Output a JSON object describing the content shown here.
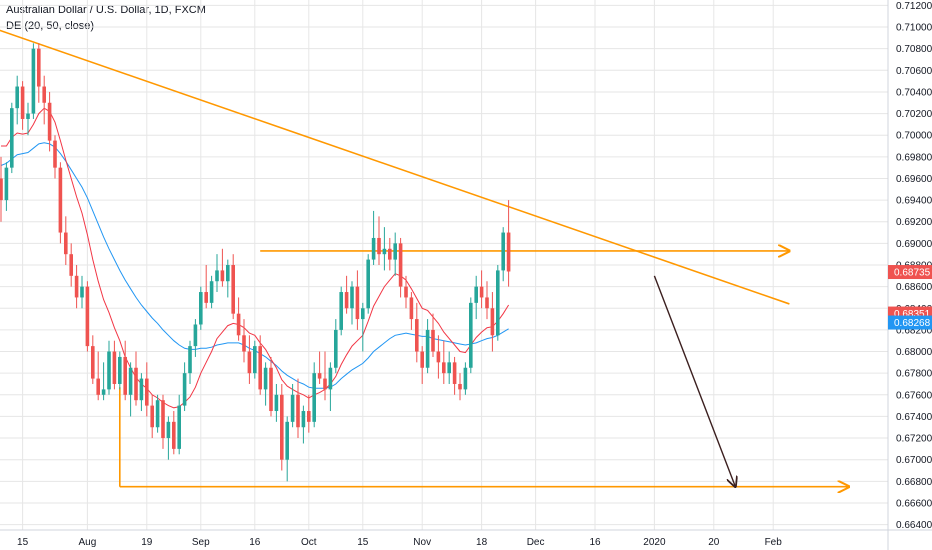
{
  "header": {
    "symbol_line": "Australian Dollar / U.S. Dollar, 1D, FXCM",
    "indicator_line": "DE (20, 50, close)"
  },
  "colors": {
    "up": "#26a69a",
    "down": "#ef5350",
    "ma_fast": "#f23645",
    "ma_slow": "#2196f3",
    "drawing": "#ff9800",
    "projection": "#3b1f1f",
    "grid": "#e6e6e6"
  },
  "chart_data": {
    "type": "candlestick",
    "y_axis": {
      "range": [
        0.6635,
        0.7125
      ],
      "ticks": [
        "0.71200",
        "0.71000",
        "0.70800",
        "0.70600",
        "0.70400",
        "0.70200",
        "0.70000",
        "0.69800",
        "0.69600",
        "0.69400",
        "0.69200",
        "0.69000",
        "0.68800",
        "0.68600",
        "0.68400",
        "0.68200",
        "0.68000",
        "0.67800",
        "0.67600",
        "0.67400",
        "0.67200",
        "0.67000",
        "0.66800",
        "0.66600",
        "0.66400"
      ]
    },
    "x_axis": {
      "ticks": [
        "15",
        "Aug",
        "19",
        "Sep",
        "16",
        "Oct",
        "15",
        "Nov",
        "18",
        "Dec",
        "16",
        "2020",
        "20",
        "Feb"
      ],
      "tick_index": [
        4,
        16,
        27,
        37,
        47,
        57,
        67,
        78,
        89,
        99,
        110,
        121,
        132,
        143
      ]
    },
    "price_badges": [
      {
        "label": "0.68735",
        "value": 0.68735,
        "color": "#ef5350"
      },
      {
        "label": "0.68351",
        "value": 0.68351,
        "color": "#ef5350"
      },
      {
        "label": "0.68268",
        "value": 0.68268,
        "color": "#2196f3"
      }
    ],
    "ohlc": [
      [
        0.696,
        0.698,
        0.692,
        0.694
      ],
      [
        0.694,
        0.6975,
        0.693,
        0.697
      ],
      [
        0.697,
        0.703,
        0.6965,
        0.7025
      ],
      [
        0.7025,
        0.7055,
        0.701,
        0.7045
      ],
      [
        0.7045,
        0.705,
        0.7005,
        0.7015
      ],
      [
        0.7015,
        0.703,
        0.7,
        0.702
      ],
      [
        0.702,
        0.7085,
        0.7015,
        0.708
      ],
      [
        0.708,
        0.7085,
        0.703,
        0.7045
      ],
      [
        0.7045,
        0.7055,
        0.701,
        0.703
      ],
      [
        0.703,
        0.704,
        0.6985,
        0.6995
      ],
      [
        0.6995,
        0.7,
        0.696,
        0.697
      ],
      [
        0.697,
        0.6975,
        0.69,
        0.691
      ],
      [
        0.691,
        0.6925,
        0.688,
        0.689
      ],
      [
        0.689,
        0.69,
        0.686,
        0.687
      ],
      [
        0.687,
        0.688,
        0.684,
        0.685
      ],
      [
        0.685,
        0.687,
        0.684,
        0.686
      ],
      [
        0.686,
        0.6865,
        0.68,
        0.6805
      ],
      [
        0.6805,
        0.6815,
        0.677,
        0.6775
      ],
      [
        0.6775,
        0.68,
        0.6755,
        0.676
      ],
      [
        0.676,
        0.679,
        0.6755,
        0.6765
      ],
      [
        0.6765,
        0.681,
        0.676,
        0.68
      ],
      [
        0.68,
        0.681,
        0.6765,
        0.677
      ],
      [
        0.677,
        0.68,
        0.6765,
        0.6795
      ],
      [
        0.6795,
        0.681,
        0.6755,
        0.676
      ],
      [
        0.676,
        0.679,
        0.674,
        0.6785
      ],
      [
        0.6785,
        0.68,
        0.675,
        0.6755
      ],
      [
        0.6755,
        0.678,
        0.6745,
        0.6775
      ],
      [
        0.6775,
        0.679,
        0.674,
        0.675
      ],
      [
        0.675,
        0.676,
        0.672,
        0.673
      ],
      [
        0.673,
        0.676,
        0.6725,
        0.6755
      ],
      [
        0.6755,
        0.676,
        0.671,
        0.672
      ],
      [
        0.672,
        0.674,
        0.67,
        0.6735
      ],
      [
        0.6735,
        0.6745,
        0.6705,
        0.671
      ],
      [
        0.671,
        0.676,
        0.6705,
        0.675
      ],
      [
        0.675,
        0.679,
        0.6745,
        0.678
      ],
      [
        0.678,
        0.681,
        0.677,
        0.6805
      ],
      [
        0.6805,
        0.683,
        0.6795,
        0.6825
      ],
      [
        0.6825,
        0.686,
        0.682,
        0.6855
      ],
      [
        0.6855,
        0.688,
        0.684,
        0.6845
      ],
      [
        0.6845,
        0.687,
        0.684,
        0.6865
      ],
      [
        0.6865,
        0.689,
        0.6855,
        0.6875
      ],
      [
        0.6875,
        0.6895,
        0.686,
        0.6865
      ],
      [
        0.6865,
        0.6885,
        0.685,
        0.688
      ],
      [
        0.688,
        0.689,
        0.683,
        0.6835
      ],
      [
        0.6835,
        0.685,
        0.681,
        0.6815
      ],
      [
        0.6815,
        0.683,
        0.679,
        0.68
      ],
      [
        0.68,
        0.6815,
        0.677,
        0.678
      ],
      [
        0.678,
        0.681,
        0.6775,
        0.6805
      ],
      [
        0.6805,
        0.6815,
        0.676,
        0.6765
      ],
      [
        0.6765,
        0.679,
        0.675,
        0.6785
      ],
      [
        0.6785,
        0.6795,
        0.674,
        0.6745
      ],
      [
        0.6745,
        0.677,
        0.6735,
        0.676
      ],
      [
        0.676,
        0.677,
        0.669,
        0.67
      ],
      [
        0.67,
        0.674,
        0.668,
        0.6735
      ],
      [
        0.6735,
        0.677,
        0.673,
        0.676
      ],
      [
        0.676,
        0.6775,
        0.672,
        0.673
      ],
      [
        0.673,
        0.675,
        0.6715,
        0.6745
      ],
      [
        0.6745,
        0.676,
        0.6725,
        0.6735
      ],
      [
        0.6735,
        0.679,
        0.673,
        0.678
      ],
      [
        0.678,
        0.68,
        0.677,
        0.6775
      ],
      [
        0.6775,
        0.68,
        0.6755,
        0.6765
      ],
      [
        0.6765,
        0.679,
        0.6745,
        0.6785
      ],
      [
        0.6785,
        0.683,
        0.678,
        0.682
      ],
      [
        0.682,
        0.686,
        0.6815,
        0.6855
      ],
      [
        0.6855,
        0.687,
        0.6835,
        0.684
      ],
      [
        0.684,
        0.6865,
        0.6825,
        0.686
      ],
      [
        0.686,
        0.6875,
        0.682,
        0.683
      ],
      [
        0.683,
        0.6845,
        0.68,
        0.684
      ],
      [
        0.684,
        0.689,
        0.6835,
        0.6885
      ],
      [
        0.6885,
        0.693,
        0.688,
        0.6905
      ],
      [
        0.6905,
        0.6925,
        0.688,
        0.689
      ],
      [
        0.689,
        0.6915,
        0.6875,
        0.6895
      ],
      [
        0.6895,
        0.6905,
        0.6875,
        0.6885
      ],
      [
        0.6885,
        0.691,
        0.687,
        0.69
      ],
      [
        0.69,
        0.6905,
        0.685,
        0.686
      ],
      [
        0.686,
        0.687,
        0.684,
        0.685
      ],
      [
        0.685,
        0.6855,
        0.682,
        0.683
      ],
      [
        0.683,
        0.6845,
        0.679,
        0.68
      ],
      [
        0.68,
        0.6805,
        0.677,
        0.6785
      ],
      [
        0.6785,
        0.683,
        0.678,
        0.682
      ],
      [
        0.682,
        0.6835,
        0.6795,
        0.68
      ],
      [
        0.68,
        0.6815,
        0.6775,
        0.679
      ],
      [
        0.679,
        0.681,
        0.677,
        0.678
      ],
      [
        0.678,
        0.68,
        0.677,
        0.679
      ],
      [
        0.679,
        0.6795,
        0.676,
        0.677
      ],
      [
        0.677,
        0.678,
        0.6755,
        0.6765
      ],
      [
        0.6765,
        0.679,
        0.676,
        0.6785
      ],
      [
        0.6785,
        0.685,
        0.678,
        0.6845
      ],
      [
        0.6845,
        0.687,
        0.683,
        0.686
      ],
      [
        0.686,
        0.6875,
        0.684,
        0.685
      ],
      [
        0.685,
        0.6865,
        0.683,
        0.684
      ],
      [
        0.684,
        0.6855,
        0.68,
        0.6815
      ],
      [
        0.6815,
        0.688,
        0.681,
        0.6875
      ],
      [
        0.6875,
        0.6915,
        0.6865,
        0.691
      ],
      [
        0.691,
        0.694,
        0.686,
        0.6874
      ]
    ],
    "moving_average_fast": [
      0.699,
      0.699,
      0.6998,
      0.7002,
      0.7001,
      0.7002,
      0.701,
      0.702,
      0.7025,
      0.7022,
      0.7012,
      0.6995,
      0.6977,
      0.696,
      0.6943,
      0.6928,
      0.6908,
      0.6885,
      0.6865,
      0.6848,
      0.6836,
      0.6822,
      0.681,
      0.6795,
      0.6785,
      0.6776,
      0.677,
      0.6766,
      0.676,
      0.6757,
      0.6753,
      0.675,
      0.6748,
      0.6749,
      0.6753,
      0.6758,
      0.6767,
      0.678,
      0.679,
      0.68,
      0.6812,
      0.6818,
      0.6824,
      0.6826,
      0.6825,
      0.6822,
      0.6817,
      0.6815,
      0.6808,
      0.6802,
      0.6793,
      0.6785,
      0.6774,
      0.6768,
      0.6765,
      0.6762,
      0.676,
      0.6757,
      0.676,
      0.6762,
      0.6765,
      0.677,
      0.6777,
      0.6788,
      0.6797,
      0.6805,
      0.681,
      0.6815,
      0.6828,
      0.6842,
      0.6851,
      0.686,
      0.6866,
      0.6872,
      0.687,
      0.6866,
      0.6858,
      0.6849,
      0.684,
      0.6838,
      0.6832,
      0.6826,
      0.6818,
      0.6812,
      0.6806,
      0.68,
      0.6799,
      0.6806,
      0.6813,
      0.6818,
      0.6822,
      0.6823,
      0.6828,
      0.6835,
      0.6843
    ],
    "moving_average_slow": [
      0.6972,
      0.6974,
      0.6978,
      0.6982,
      0.6983,
      0.6984,
      0.6988,
      0.6992,
      0.6993,
      0.6992,
      0.6989,
      0.6983,
      0.6976,
      0.6968,
      0.696,
      0.6952,
      0.6942,
      0.693,
      0.6918,
      0.6906,
      0.6895,
      0.6885,
      0.6875,
      0.6866,
      0.6858,
      0.685,
      0.6843,
      0.6837,
      0.6831,
      0.6826,
      0.682,
      0.6815,
      0.681,
      0.6806,
      0.6803,
      0.6802,
      0.6802,
      0.6803,
      0.6803,
      0.6804,
      0.6806,
      0.6807,
      0.6808,
      0.6808,
      0.6808,
      0.6806,
      0.6803,
      0.6801,
      0.6798,
      0.6795,
      0.6791,
      0.6787,
      0.6782,
      0.6778,
      0.6775,
      0.6772,
      0.677,
      0.6767,
      0.6766,
      0.6766,
      0.6766,
      0.6767,
      0.677,
      0.6775,
      0.6779,
      0.6783,
      0.6786,
      0.6789,
      0.6794,
      0.68,
      0.6804,
      0.6808,
      0.6812,
      0.6815,
      0.6816,
      0.6817,
      0.6816,
      0.6815,
      0.6814,
      0.6814,
      0.6812,
      0.6811,
      0.681,
      0.6809,
      0.6808,
      0.6807,
      0.6806,
      0.6807,
      0.6808,
      0.681,
      0.6812,
      0.6813,
      0.6815,
      0.6818,
      0.6821
    ],
    "drawings": {
      "downtrend_line": {
        "from": [
          -2,
          0.71
        ],
        "to": [
          146,
          0.6844
        ]
      },
      "resistance_arrow": {
        "from": [
          48,
          0.6893
        ],
        "to": [
          146,
          0.6893
        ]
      },
      "support_arrow": {
        "from": [
          22,
          0.6675
        ],
        "to": [
          157,
          0.6675
        ]
      },
      "support_drop_from": [
        22,
        0.6767
      ],
      "projection_arrow": {
        "from": [
          121,
          0.687
        ],
        "to": [
          136,
          0.6675
        ]
      }
    }
  }
}
